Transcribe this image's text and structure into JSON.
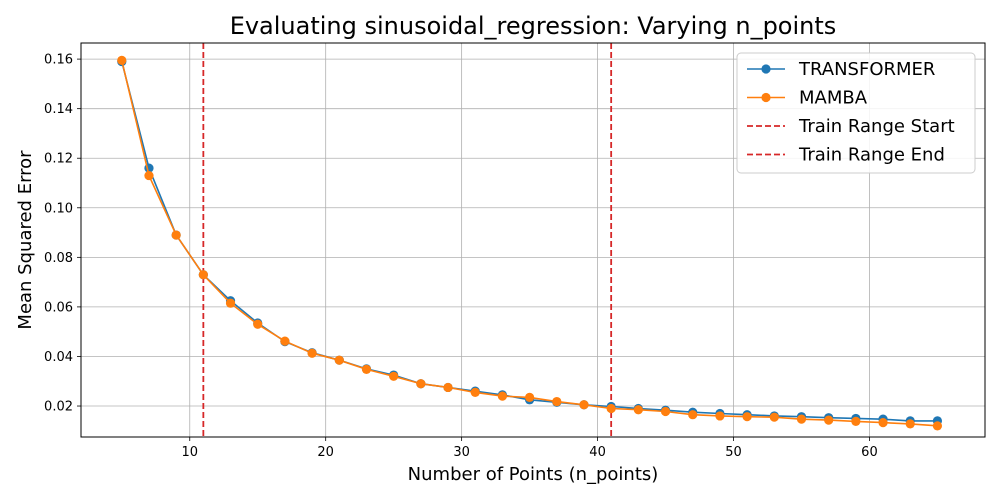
{
  "chart_data": {
    "type": "line",
    "title": "Evaluating sinusoidal_regression: Varying n_points",
    "xlabel": "Number of Points (n_points)",
    "ylabel": "Mean Squared Error",
    "xlim": [
      2,
      68.5
    ],
    "ylim": [
      0.0075,
      0.1665
    ],
    "x_ticks": [
      10,
      20,
      30,
      40,
      50,
      60
    ],
    "y_ticks": [
      0.02,
      0.04,
      0.06,
      0.08,
      0.1,
      0.12,
      0.14,
      0.16
    ],
    "x_tick_labels": [
      "10",
      "20",
      "30",
      "40",
      "50",
      "60"
    ],
    "y_tick_labels": [
      "0.02",
      "0.04",
      "0.06",
      "0.08",
      "0.10",
      "0.12",
      "0.14",
      "0.16"
    ],
    "grid": true,
    "legend_position": "top-right",
    "x": [
      5,
      7,
      9,
      11,
      13,
      15,
      17,
      19,
      21,
      23,
      25,
      27,
      29,
      31,
      33,
      35,
      37,
      39,
      41,
      43,
      45,
      47,
      49,
      51,
      53,
      55,
      57,
      59,
      61,
      63,
      65
    ],
    "series": [
      {
        "name": "TRANSFORMER",
        "color": "#1f77b4",
        "values": [
          0.159,
          0.116,
          0.089,
          0.073,
          0.0625,
          0.0535,
          0.046,
          0.0415,
          0.0385,
          0.035,
          0.0325,
          0.029,
          0.0275,
          0.026,
          0.0245,
          0.0225,
          0.0215,
          0.0205,
          0.0198,
          0.019,
          0.0183,
          0.0175,
          0.017,
          0.0165,
          0.016,
          0.0157,
          0.0153,
          0.015,
          0.0147,
          0.014,
          0.014
        ]
      },
      {
        "name": "MAMBA",
        "color": "#ff7f0e",
        "values": [
          0.1595,
          0.113,
          0.089,
          0.073,
          0.0615,
          0.053,
          0.0462,
          0.0413,
          0.0385,
          0.0348,
          0.032,
          0.029,
          0.0275,
          0.0255,
          0.024,
          0.0235,
          0.0218,
          0.0205,
          0.019,
          0.0185,
          0.0178,
          0.0165,
          0.016,
          0.0157,
          0.0155,
          0.0147,
          0.0143,
          0.0138,
          0.0133,
          0.0128,
          0.012
        ]
      }
    ],
    "vlines": [
      {
        "name": "Train Range Start",
        "x": 11,
        "color": "#d62728"
      },
      {
        "name": "Train Range End",
        "x": 41,
        "color": "#d62728"
      }
    ]
  }
}
